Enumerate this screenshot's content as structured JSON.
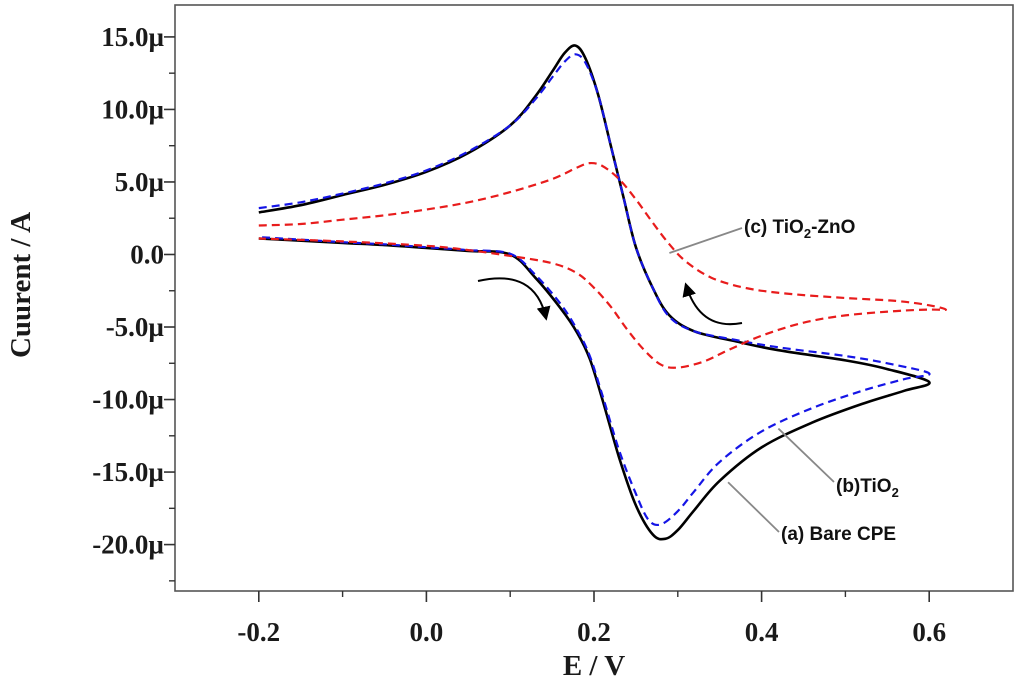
{
  "chart_data": {
    "type": "line",
    "title": "",
    "xlabel": "E / V",
    "ylabel": "Cuurent / A",
    "xlim": [
      -0.3,
      0.7
    ],
    "ylim": [
      -23.2,
      17.2
    ],
    "x_ticks": [
      {
        "value": -0.2,
        "label": "-0.2"
      },
      {
        "value": 0.0,
        "label": "0.0"
      },
      {
        "value": 0.2,
        "label": "0.2"
      },
      {
        "value": 0.4,
        "label": "0.4"
      },
      {
        "value": 0.6,
        "label": "0.6"
      }
    ],
    "y_ticks": [
      {
        "value": 15,
        "label": "15.0µ"
      },
      {
        "value": 10,
        "label": "10.0µ"
      },
      {
        "value": 5,
        "label": "5.0µ"
      },
      {
        "value": 0,
        "label": "0.0"
      },
      {
        "value": -5,
        "label": "-5.0µ"
      },
      {
        "value": -10,
        "label": "-10.0µ"
      },
      {
        "value": -15,
        "label": "-15.0µ"
      },
      {
        "value": -20,
        "label": "-20.0µ"
      }
    ],
    "grid": false,
    "series": [
      {
        "name": "(a) Bare CPE",
        "color": "#000000",
        "dash": "solid",
        "points": [
          [
            -0.2,
            2.9
          ],
          [
            -0.15,
            3.4
          ],
          [
            -0.1,
            4.1
          ],
          [
            -0.05,
            4.8
          ],
          [
            0.0,
            5.7
          ],
          [
            0.05,
            7.0
          ],
          [
            0.1,
            8.9
          ],
          [
            0.13,
            10.9
          ],
          [
            0.15,
            12.6
          ],
          [
            0.165,
            13.9
          ],
          [
            0.178,
            14.4
          ],
          [
            0.19,
            13.5
          ],
          [
            0.205,
            11.0
          ],
          [
            0.22,
            7.5
          ],
          [
            0.235,
            4.0
          ],
          [
            0.25,
            0.5
          ],
          [
            0.27,
            -2.3
          ],
          [
            0.29,
            -4.2
          ],
          [
            0.32,
            -5.3
          ],
          [
            0.37,
            -6.0
          ],
          [
            0.42,
            -6.6
          ],
          [
            0.5,
            -7.3
          ],
          [
            0.55,
            -7.9
          ],
          [
            0.6,
            -8.8
          ],
          [
            0.57,
            -9.4
          ],
          [
            0.52,
            -10.3
          ],
          [
            0.46,
            -11.6
          ],
          [
            0.4,
            -13.3
          ],
          [
            0.35,
            -15.6
          ],
          [
            0.32,
            -17.6
          ],
          [
            0.3,
            -19.0
          ],
          [
            0.285,
            -19.6
          ],
          [
            0.27,
            -19.3
          ],
          [
            0.25,
            -17.3
          ],
          [
            0.23,
            -14.0
          ],
          [
            0.21,
            -10.0
          ],
          [
            0.195,
            -7.2
          ],
          [
            0.18,
            -5.4
          ],
          [
            0.16,
            -3.7
          ],
          [
            0.13,
            -1.6
          ],
          [
            0.1,
            0.0
          ],
          [
            0.05,
            0.25
          ],
          [
            0.0,
            0.45
          ],
          [
            -0.05,
            0.65
          ],
          [
            -0.1,
            0.8
          ],
          [
            -0.2,
            1.1
          ]
        ]
      },
      {
        "name": "(b)TiO₂",
        "color": "#1515e6",
        "dash": "8,5",
        "points": [
          [
            -0.2,
            3.2
          ],
          [
            -0.15,
            3.6
          ],
          [
            -0.1,
            4.2
          ],
          [
            -0.05,
            4.9
          ],
          [
            0.0,
            5.8
          ],
          [
            0.05,
            7.1
          ],
          [
            0.1,
            8.9
          ],
          [
            0.13,
            10.7
          ],
          [
            0.15,
            12.2
          ],
          [
            0.165,
            13.3
          ],
          [
            0.178,
            13.8
          ],
          [
            0.19,
            13.2
          ],
          [
            0.205,
            11.0
          ],
          [
            0.22,
            7.5
          ],
          [
            0.235,
            4.0
          ],
          [
            0.25,
            0.5
          ],
          [
            0.27,
            -2.3
          ],
          [
            0.29,
            -4.3
          ],
          [
            0.32,
            -5.3
          ],
          [
            0.37,
            -5.9
          ],
          [
            0.42,
            -6.4
          ],
          [
            0.5,
            -7.0
          ],
          [
            0.55,
            -7.5
          ],
          [
            0.6,
            -8.2
          ],
          [
            0.57,
            -8.6
          ],
          [
            0.52,
            -9.4
          ],
          [
            0.46,
            -10.6
          ],
          [
            0.4,
            -12.2
          ],
          [
            0.35,
            -14.3
          ],
          [
            0.32,
            -16.3
          ],
          [
            0.3,
            -17.7
          ],
          [
            0.28,
            -18.6
          ],
          [
            0.265,
            -18.3
          ],
          [
            0.25,
            -16.5
          ],
          [
            0.23,
            -13.5
          ],
          [
            0.21,
            -9.7
          ],
          [
            0.195,
            -7.0
          ],
          [
            0.18,
            -5.2
          ],
          [
            0.16,
            -3.4
          ],
          [
            0.13,
            -1.4
          ],
          [
            0.1,
            0.05
          ],
          [
            0.05,
            0.3
          ],
          [
            0.0,
            0.5
          ],
          [
            -0.05,
            0.7
          ],
          [
            -0.1,
            0.85
          ],
          [
            -0.2,
            1.2
          ]
        ]
      },
      {
        "name": "(c) TiO₂-ZnO",
        "color": "#e81c1c",
        "dash": "8,5",
        "points": [
          [
            -0.2,
            2.0
          ],
          [
            -0.15,
            2.1
          ],
          [
            -0.1,
            2.4
          ],
          [
            -0.05,
            2.7
          ],
          [
            0.0,
            3.1
          ],
          [
            0.05,
            3.6
          ],
          [
            0.1,
            4.3
          ],
          [
            0.15,
            5.2
          ],
          [
            0.18,
            6.0
          ],
          [
            0.195,
            6.3
          ],
          [
            0.21,
            6.1
          ],
          [
            0.23,
            5.2
          ],
          [
            0.25,
            3.8
          ],
          [
            0.27,
            2.2
          ],
          [
            0.29,
            0.7
          ],
          [
            0.31,
            -0.5
          ],
          [
            0.34,
            -1.6
          ],
          [
            0.38,
            -2.3
          ],
          [
            0.43,
            -2.7
          ],
          [
            0.5,
            -3.0
          ],
          [
            0.56,
            -3.2
          ],
          [
            0.6,
            -3.5
          ],
          [
            0.62,
            -3.8
          ],
          [
            0.6,
            -3.8
          ],
          [
            0.56,
            -3.9
          ],
          [
            0.5,
            -4.2
          ],
          [
            0.45,
            -4.7
          ],
          [
            0.4,
            -5.6
          ],
          [
            0.36,
            -6.6
          ],
          [
            0.33,
            -7.4
          ],
          [
            0.3,
            -7.8
          ],
          [
            0.28,
            -7.6
          ],
          [
            0.26,
            -6.6
          ],
          [
            0.24,
            -5.2
          ],
          [
            0.22,
            -3.6
          ],
          [
            0.2,
            -2.3
          ],
          [
            0.18,
            -1.3
          ],
          [
            0.15,
            -0.6
          ],
          [
            0.1,
            -0.1
          ],
          [
            0.05,
            0.3
          ],
          [
            0.0,
            0.6
          ],
          [
            -0.1,
            0.9
          ],
          [
            -0.2,
            1.1
          ]
        ]
      }
    ],
    "annotations": [
      {
        "name": "(c) TiO₂-ZnO",
        "prefix": "(c) TiO",
        "sub": "2",
        "suffix": "-ZnO"
      },
      {
        "name": "(b)TiO₂",
        "prefix": "(b)TiO",
        "sub": "2",
        "suffix": ""
      },
      {
        "name": "(a) Bare CPE",
        "prefix": "(a) Bare CPE",
        "sub": "",
        "suffix": ""
      }
    ]
  }
}
